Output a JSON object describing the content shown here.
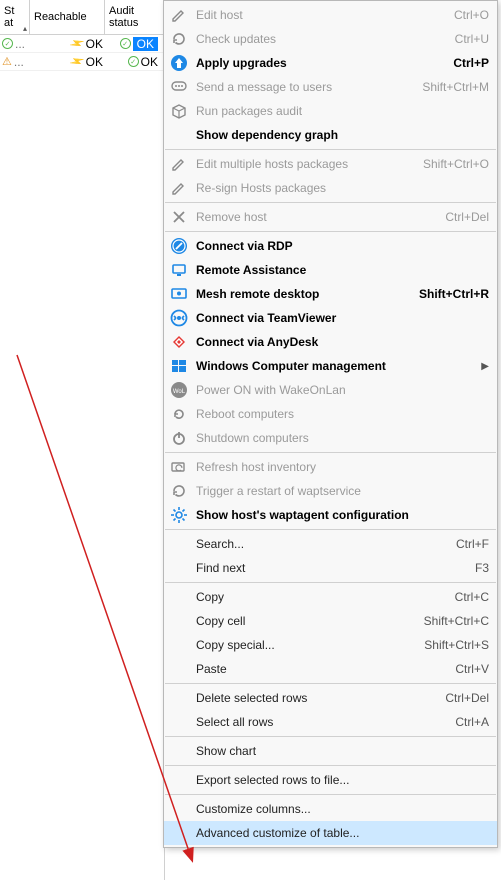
{
  "table": {
    "columns": {
      "status": "St\nat",
      "reachable": "Reachable",
      "audit": "Audit status"
    },
    "rows": [
      {
        "status_kind": "ok",
        "reach_text": "OK",
        "audit_text": "OK",
        "audit_selected": true
      },
      {
        "status_kind": "warn",
        "reach_text": "OK",
        "audit_text": "OK",
        "audit_selected": false
      }
    ]
  },
  "context_menu": [
    {
      "type": "item",
      "icon": "pencil",
      "label": "Edit host",
      "shortcut": "Ctrl+O",
      "disabled": true
    },
    {
      "type": "item",
      "icon": "refresh",
      "label": "Check updates",
      "shortcut": "Ctrl+U",
      "disabled": true
    },
    {
      "type": "item",
      "icon": "up-circle",
      "label": "Apply upgrades",
      "shortcut": "Ctrl+P",
      "bold": true
    },
    {
      "type": "item",
      "icon": "msg",
      "label": "Send a message to users",
      "shortcut": "Shift+Ctrl+M",
      "disabled": true
    },
    {
      "type": "item",
      "icon": "pkg",
      "label": "Run packages audit",
      "disabled": true
    },
    {
      "type": "item",
      "icon": "",
      "label": "Show dependency graph",
      "bold": true
    },
    {
      "type": "sep"
    },
    {
      "type": "item",
      "icon": "pencil",
      "label": "Edit multiple hosts packages",
      "shortcut": "Shift+Ctrl+O",
      "disabled": true
    },
    {
      "type": "item",
      "icon": "pencil",
      "label": "Re-sign Hosts packages",
      "disabled": true
    },
    {
      "type": "sep"
    },
    {
      "type": "item",
      "icon": "x",
      "label": "Remove host",
      "shortcut": "Ctrl+Del",
      "disabled": true
    },
    {
      "type": "sep"
    },
    {
      "type": "item",
      "icon": "rdp",
      "label": "Connect via RDP",
      "bold": true
    },
    {
      "type": "item",
      "icon": "remote",
      "label": "Remote Assistance",
      "bold": true
    },
    {
      "type": "item",
      "icon": "mesh",
      "label": "Mesh remote desktop",
      "shortcut": "Shift+Ctrl+R",
      "bold": true
    },
    {
      "type": "item",
      "icon": "tv",
      "label": "Connect via TeamViewer",
      "bold": true
    },
    {
      "type": "item",
      "icon": "anydesk",
      "label": "Connect via AnyDesk",
      "bold": true
    },
    {
      "type": "item",
      "icon": "win",
      "label": "Windows Computer management",
      "bold": true,
      "submenu": true
    },
    {
      "type": "item",
      "icon": "wol",
      "label": "Power ON with WakeOnLan",
      "disabled": true
    },
    {
      "type": "item",
      "icon": "reboot",
      "label": "Reboot computers",
      "disabled": true
    },
    {
      "type": "item",
      "icon": "power",
      "label": "Shutdown computers",
      "disabled": true
    },
    {
      "type": "sep"
    },
    {
      "type": "item",
      "icon": "refresh2",
      "label": "Refresh host inventory",
      "disabled": true
    },
    {
      "type": "item",
      "icon": "restart",
      "label": "Trigger a restart of waptservice",
      "disabled": true
    },
    {
      "type": "item",
      "icon": "gear",
      "label": "Show host's waptagent configuration",
      "bold": true
    },
    {
      "type": "sep"
    },
    {
      "type": "item",
      "icon": "",
      "label": "Search...",
      "shortcut": "Ctrl+F"
    },
    {
      "type": "item",
      "icon": "",
      "label": "Find next",
      "shortcut": "F3"
    },
    {
      "type": "sep"
    },
    {
      "type": "item",
      "icon": "",
      "label": "Copy",
      "shortcut": "Ctrl+C"
    },
    {
      "type": "item",
      "icon": "",
      "label": "Copy cell",
      "shortcut": "Shift+Ctrl+C"
    },
    {
      "type": "item",
      "icon": "",
      "label": "Copy special...",
      "shortcut": "Shift+Ctrl+S"
    },
    {
      "type": "item",
      "icon": "",
      "label": "Paste",
      "shortcut": "Ctrl+V"
    },
    {
      "type": "sep"
    },
    {
      "type": "item",
      "icon": "",
      "label": "Delete selected rows",
      "shortcut": "Ctrl+Del"
    },
    {
      "type": "item",
      "icon": "",
      "label": "Select all rows",
      "shortcut": "Ctrl+A"
    },
    {
      "type": "sep"
    },
    {
      "type": "item",
      "icon": "",
      "label": "Show chart"
    },
    {
      "type": "sep"
    },
    {
      "type": "item",
      "icon": "",
      "label": "Export selected rows to file..."
    },
    {
      "type": "sep"
    },
    {
      "type": "item",
      "icon": "",
      "label": "Customize columns..."
    },
    {
      "type": "item",
      "icon": "",
      "label": "Advanced customize of table...",
      "highlight": true
    }
  ],
  "colors": {
    "menu_highlight": "#cde8ff",
    "selection_blue": "#0a84ff",
    "arrow_red": "#d02020",
    "icon_blue": "#1e88e5",
    "icon_gray": "#8a8a8a",
    "icon_green": "#57b74f",
    "icon_orange": "#ef6c00",
    "icon_red": "#e53935"
  }
}
